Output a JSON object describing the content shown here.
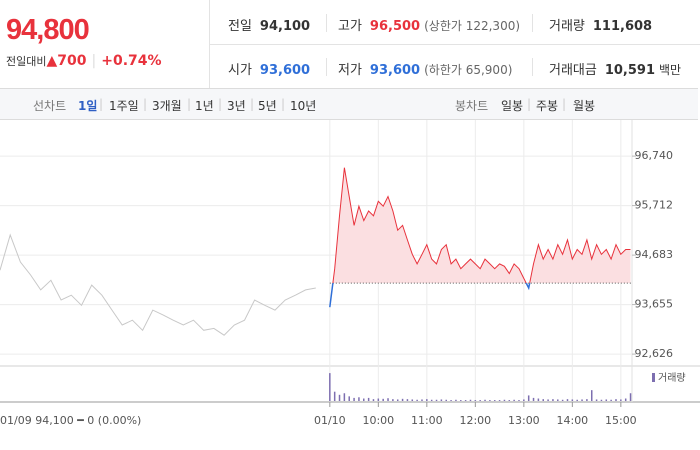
{
  "header": {
    "price": "94,800",
    "change_label": "전일대비",
    "change": "700",
    "change_pct": "+0.74%",
    "stats": [
      {
        "label": "전일",
        "value": "94,100"
      },
      {
        "label": "고가",
        "value": "96,500",
        "note": "(상한가 122,300)"
      },
      {
        "label": "거래량",
        "value": "111,608"
      },
      {
        "label": "시가",
        "value": "93,600"
      },
      {
        "label": "저가",
        "value": "93,600",
        "note": "(하한가 65,900)"
      },
      {
        "label": "거래대금",
        "value": "10,591",
        "unit": "백만"
      }
    ]
  },
  "tabs": {
    "line_label": "선차트",
    "line": [
      "1일",
      "1주일",
      "3개월",
      "1년",
      "3년",
      "5년",
      "10년"
    ],
    "candle_label": "봉차트",
    "candle": [
      "일봉",
      "주봉",
      "월봉"
    ]
  },
  "chart_data": {
    "type": "line",
    "prev_label": "01/09 94,100 ━ 0 (0.00%)",
    "baseline": 94100,
    "xlim": [
      2.2,
      15.23
    ],
    "xticks": [
      {
        "value": 9,
        "label": "01/10"
      },
      {
        "value": 10,
        "label": "10:00"
      },
      {
        "value": 11,
        "label": "11:00"
      },
      {
        "value": 12,
        "label": "12:00"
      },
      {
        "value": 13,
        "label": "13:00"
      },
      {
        "value": 14,
        "label": "14:00"
      },
      {
        "value": 15,
        "label": "15:00"
      }
    ],
    "ylim": [
      92400,
      97490
    ],
    "yticks": [
      {
        "value": 96740,
        "label": "96,740"
      },
      {
        "value": 95712,
        "label": "95,712"
      },
      {
        "value": 94683,
        "label": "94,683"
      },
      {
        "value": 93655,
        "label": "93,655"
      },
      {
        "value": 92626,
        "label": "92,626"
      }
    ],
    "grid": true,
    "series": [
      {
        "color": "#c8c8c8",
        "x": [
          2.2,
          2.41,
          2.62,
          2.83,
          3.04,
          3.25,
          3.46,
          3.67,
          3.88,
          4.09,
          4.3,
          4.51,
          4.72,
          4.93,
          5.14,
          5.35,
          5.56,
          5.77,
          5.98,
          6.19,
          6.4,
          6.61,
          6.82,
          7.03,
          7.24,
          7.45,
          7.66,
          7.87,
          8.08,
          8.29,
          8.5,
          8.71
        ],
        "values": [
          94370,
          95100,
          94540,
          94270,
          93960,
          94160,
          93750,
          93850,
          93640,
          94060,
          93850,
          93540,
          93230,
          93330,
          93120,
          93540,
          93440,
          93330,
          93230,
          93330,
          93120,
          93160,
          93020,
          93230,
          93330,
          93750,
          93640,
          93540,
          93750,
          93850,
          93960,
          94000
        ]
      },
      {
        "color": "#e8323c",
        "below_color": "#2f6fd8",
        "fill": "#fbdfe1",
        "x": [
          9.0,
          9.1,
          9.2,
          9.3,
          9.4,
          9.5,
          9.6,
          9.7,
          9.8,
          9.9,
          10.0,
          10.1,
          10.2,
          10.3,
          10.4,
          10.5,
          10.6,
          10.7,
          10.8,
          10.9,
          11.0,
          11.1,
          11.2,
          11.3,
          11.4,
          11.5,
          11.6,
          11.7,
          11.8,
          11.9,
          12.0,
          12.1,
          12.2,
          12.3,
          12.4,
          12.5,
          12.6,
          12.7,
          12.8,
          12.9,
          13.0,
          13.1,
          13.2,
          13.3,
          13.4,
          13.5,
          13.6,
          13.7,
          13.8,
          13.9,
          14.0,
          14.1,
          14.2,
          14.3,
          14.4,
          14.5,
          14.6,
          14.7,
          14.8,
          14.9,
          15.0,
          15.1,
          15.2
        ],
        "values": [
          93600,
          94400,
          95500,
          96500,
          95900,
          95300,
          95700,
          95400,
          95600,
          95500,
          95800,
          95700,
          95900,
          95600,
          95200,
          95300,
          95000,
          94700,
          94500,
          94700,
          94900,
          94600,
          94500,
          94800,
          94900,
          94500,
          94600,
          94400,
          94500,
          94600,
          94500,
          94400,
          94600,
          94500,
          94400,
          94500,
          94450,
          94300,
          94500,
          94400,
          94200,
          94000,
          94500,
          94900,
          94600,
          94800,
          94600,
          94900,
          94700,
          95000,
          94600,
          94800,
          94700,
          95000,
          94600,
          94900,
          94700,
          94800,
          94600,
          94900,
          94700,
          94800,
          94800
        ]
      }
    ],
    "volume": {
      "name": "거래량",
      "color": "#7d6fb0",
      "vlim": [
        0,
        100
      ],
      "values": [
        90,
        30,
        20,
        25,
        15,
        10,
        12,
        8,
        10,
        6,
        8,
        7,
        9,
        6,
        5,
        7,
        6,
        5,
        4,
        5,
        6,
        4,
        4,
        5,
        4,
        3,
        4,
        3,
        3,
        4,
        3,
        3,
        4,
        3,
        3,
        3,
        4,
        3,
        4,
        3,
        5,
        18,
        10,
        8,
        6,
        5,
        6,
        5,
        4,
        6,
        5,
        4,
        5,
        6,
        35,
        5,
        4,
        5,
        4,
        6,
        5,
        8,
        25
      ]
    }
  }
}
